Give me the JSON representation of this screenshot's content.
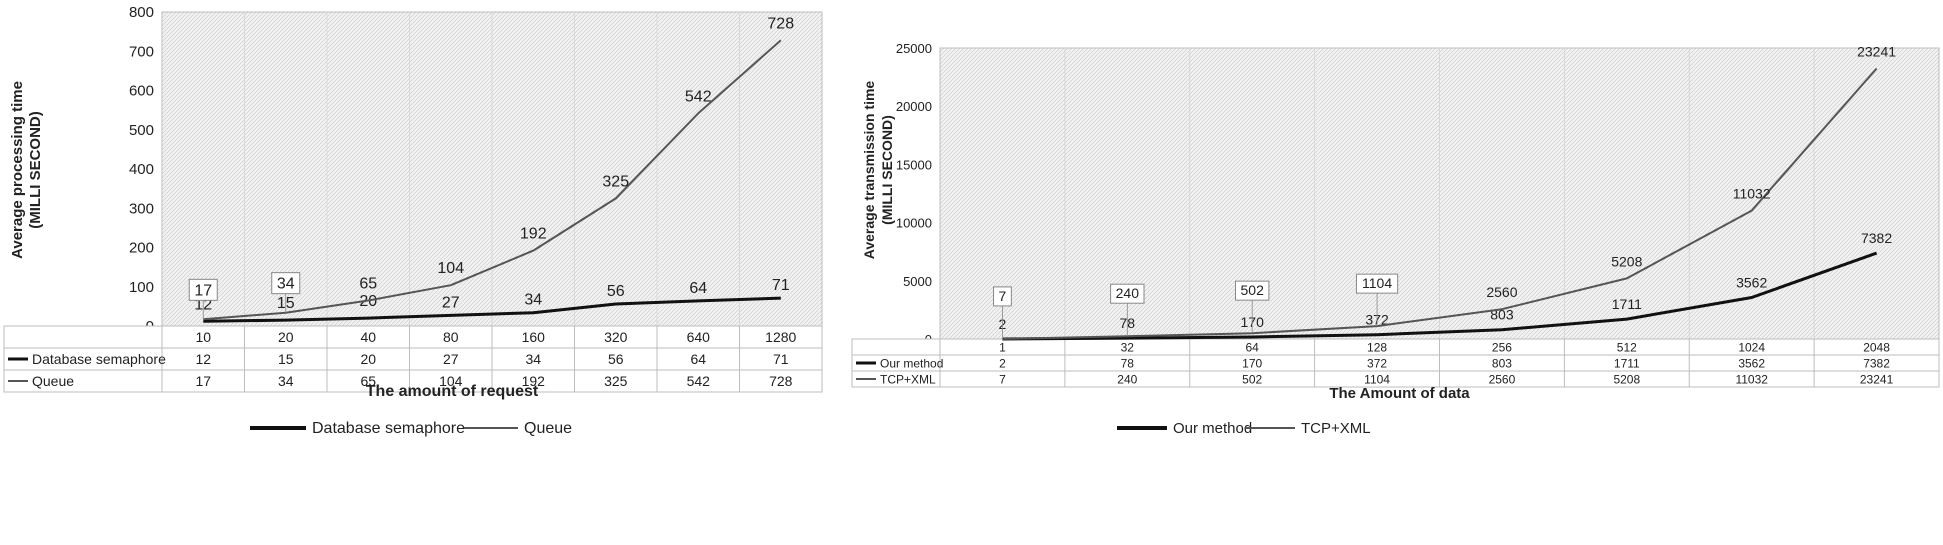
{
  "chart_data": [
    {
      "type": "line",
      "title": "",
      "xlabel": "The amount of request",
      "ylabel": "Average processing time",
      "ylabel_unit": "(MILLI SECOND)",
      "categories": [
        "10",
        "20",
        "40",
        "80",
        "160",
        "320",
        "640",
        "1280"
      ],
      "ylim": [
        0,
        800
      ],
      "yticks": [
        "0",
        "100",
        "200",
        "300",
        "400",
        "500",
        "600",
        "700",
        "800"
      ],
      "series": [
        {
          "name": "Database semaphore",
          "values": [
            12,
            15,
            20,
            27,
            34,
            56,
            64,
            71
          ],
          "color": "#111111"
        },
        {
          "name": "Queue",
          "values": [
            17,
            34,
            65,
            104,
            192,
            325,
            542,
            728
          ],
          "color": "#555555"
        }
      ],
      "legend_position": "bottom",
      "data_table": true,
      "grid": false
    },
    {
      "type": "line",
      "title": "",
      "xlabel": "The Amount of data",
      "ylabel": "Average transmission time",
      "ylabel_unit": "(MILLI SECOND)",
      "categories": [
        "1",
        "32",
        "64",
        "128",
        "256",
        "512",
        "1024",
        "2048"
      ],
      "ylim": [
        0,
        25000
      ],
      "yticks": [
        "0",
        "5000",
        "10000",
        "15000",
        "20000",
        "25000"
      ],
      "series": [
        {
          "name": "Our method",
          "values": [
            2,
            78,
            170,
            372,
            803,
            1711,
            3562,
            7382
          ],
          "color": "#111111"
        },
        {
          "name": "TCP+XML",
          "values": [
            7,
            240,
            502,
            1104,
            2560,
            5208,
            11032,
            23241
          ],
          "color": "#555555"
        }
      ],
      "legend_position": "bottom",
      "data_table": true,
      "grid": false
    }
  ]
}
